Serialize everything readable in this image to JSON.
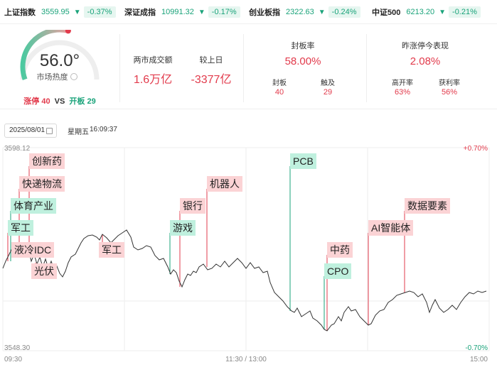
{
  "indices": [
    {
      "name": "上证指数",
      "value": "3559.95",
      "change": "-0.37%"
    },
    {
      "name": "深证成指",
      "value": "10991.32",
      "change": "-0.17%"
    },
    {
      "name": "创业板指",
      "value": "2322.63",
      "change": "-0.24%"
    },
    {
      "name": "中证500",
      "value": "6213.20",
      "change": "-0.21%"
    }
  ],
  "heat": {
    "value": "56.0°",
    "label": "市场热度",
    "level": 0.56
  },
  "limits": {
    "up_label": "涨停",
    "up_count": "40",
    "vs": "VS",
    "open_label": "开板",
    "open_count": "29"
  },
  "turnover": {
    "label": "两市成交额",
    "value": "1.6万亿",
    "compare_label": "较上日",
    "compare_value": "-3377亿"
  },
  "seal_rate": {
    "label": "封板率",
    "value": "58.00%",
    "sealed_label": "封板",
    "sealed_value": "40",
    "touched_label": "触及",
    "touched_value": "29"
  },
  "yesterday": {
    "label": "昨涨停今表现",
    "value": "2.08%",
    "high_open_label": "高开率",
    "high_open_value": "63%",
    "profit_label": "获利率",
    "profit_value": "56%"
  },
  "date": {
    "value": "2025/08/01",
    "weekday": "星期五",
    "time": "16:09:37"
  },
  "chart": {
    "y_top": "3598.12",
    "y_bottom": "3548.30",
    "pct_top": "+0.70%",
    "pct_bottom": "-0.70%",
    "x_start": "09:30",
    "x_mid": "11:30 / 13:00",
    "x_end": "15:00",
    "colors": {
      "up": "#e23b4c",
      "down": "#1aa37a",
      "line": "#333333"
    }
  },
  "tags": [
    {
      "text": "创新药",
      "color": "red"
    },
    {
      "text": "快递物流",
      "color": "red"
    },
    {
      "text": "体育产业",
      "color": "green"
    },
    {
      "text": "军工",
      "color": "green"
    },
    {
      "text": "液冷IDC",
      "color": "red"
    },
    {
      "text": "光伏",
      "color": "red"
    },
    {
      "text": "军工",
      "color": "red"
    },
    {
      "text": "游戏",
      "color": "green"
    },
    {
      "text": "银行",
      "color": "red"
    },
    {
      "text": "机器人",
      "color": "red"
    },
    {
      "text": "PCB",
      "color": "green"
    },
    {
      "text": "中药",
      "color": "red"
    },
    {
      "text": "CPO",
      "color": "green"
    },
    {
      "text": "AI智能体",
      "color": "red"
    },
    {
      "text": "数据要素",
      "color": "red"
    }
  ]
}
